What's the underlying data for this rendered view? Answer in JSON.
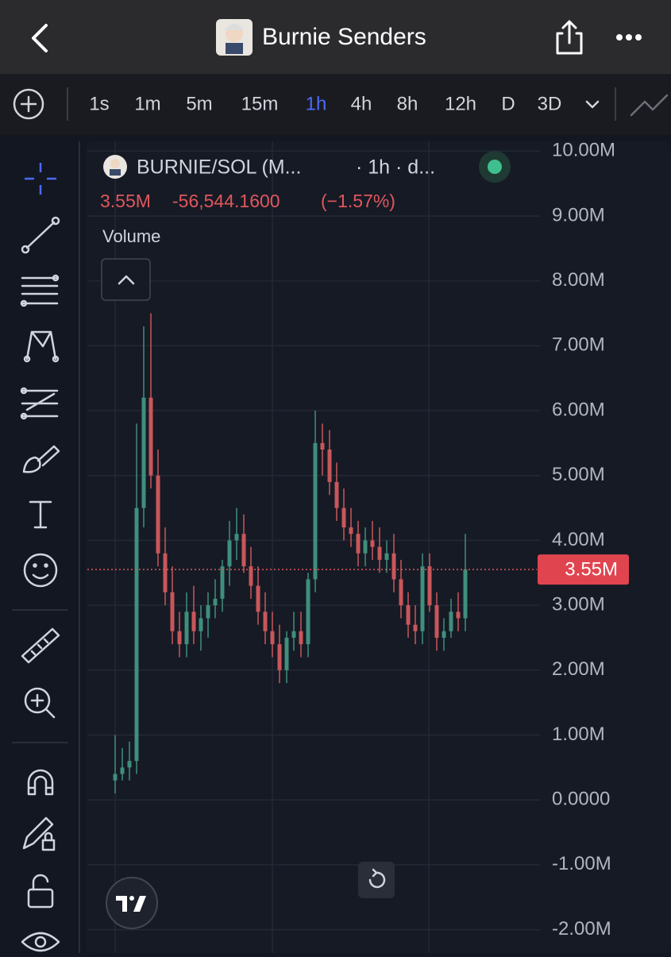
{
  "header": {
    "title": "Burnie Senders"
  },
  "timeframes": [
    "1s",
    "1m",
    "5m",
    "15m",
    "1h",
    "4h",
    "8h",
    "12h",
    "D",
    "3D"
  ],
  "active_timeframe": 4,
  "chart_data": {
    "type": "candlestick",
    "title": "BURNIE/SOL (M...",
    "interval": "· 1h · d...",
    "last_price": {
      "value": 3.55,
      "label": "3.55M"
    },
    "change": "-56,544.1600",
    "change_pct": "(−1.57%)",
    "volume_label": "Volume",
    "up_color": "#3f8f7c",
    "down_color": "#c8575a",
    "ylim": [
      -2.36,
      10.15
    ],
    "yticks": [
      {
        "value": 10,
        "label": "10.00M"
      },
      {
        "value": 9,
        "label": "9.00M"
      },
      {
        "value": 8,
        "label": "8.00M"
      },
      {
        "value": 7,
        "label": "7.00M"
      },
      {
        "value": 6,
        "label": "6.00M"
      },
      {
        "value": 5,
        "label": "5.00M"
      },
      {
        "value": 4,
        "label": "4.00M"
      },
      {
        "value": 3,
        "label": "3.00M"
      },
      {
        "value": 2,
        "label": "2.00M"
      },
      {
        "value": 1,
        "label": "1.00M"
      },
      {
        "value": 0,
        "label": "0.0000"
      },
      {
        "value": -1,
        "label": "-1.00M"
      },
      {
        "value": -2,
        "label": "-2.00M"
      }
    ],
    "grid": true,
    "open": [
      0.3,
      0.4,
      0.5,
      0.6,
      4.5,
      6.2,
      5.0,
      3.8,
      3.2,
      2.6,
      2.4,
      2.9,
      2.6,
      2.8,
      3.0,
      3.1,
      3.6,
      4.0,
      4.1,
      3.6,
      3.3,
      2.9,
      2.6,
      2.4,
      2.0,
      2.5,
      2.6,
      2.4,
      3.4,
      5.5,
      5.4,
      4.9,
      4.5,
      4.2,
      4.1,
      3.8,
      4.0,
      3.9,
      3.7,
      3.8,
      3.4,
      3.0,
      2.7,
      2.6,
      3.6,
      3.0,
      2.5,
      2.6,
      2.9,
      2.8
    ],
    "high": [
      1.0,
      0.8,
      0.9,
      5.8,
      7.3,
      7.5,
      5.4,
      4.2,
      3.6,
      2.9,
      3.2,
      3.3,
      3.0,
      3.2,
      3.4,
      3.7,
      4.3,
      4.5,
      4.4,
      3.9,
      3.6,
      3.2,
      2.9,
      2.7,
      2.6,
      2.9,
      2.9,
      3.5,
      6.0,
      5.8,
      5.7,
      5.2,
      4.8,
      4.5,
      4.3,
      4.2,
      4.3,
      4.2,
      4.0,
      4.1,
      3.7,
      3.2,
      3.0,
      3.8,
      3.8,
      3.2,
      2.8,
      3.1,
      3.2,
      4.1
    ],
    "low": [
      0.1,
      0.3,
      0.3,
      0.4,
      4.2,
      4.8,
      3.6,
      3.0,
      2.4,
      2.2,
      2.2,
      2.4,
      2.3,
      2.5,
      2.8,
      2.9,
      3.3,
      3.7,
      3.5,
      3.1,
      2.7,
      2.4,
      2.2,
      1.8,
      1.8,
      2.3,
      2.2,
      2.2,
      3.2,
      5.0,
      4.7,
      4.3,
      4.0,
      3.9,
      3.6,
      3.6,
      3.7,
      3.5,
      3.5,
      3.2,
      2.8,
      2.5,
      2.4,
      2.4,
      2.9,
      2.3,
      2.3,
      2.5,
      2.6,
      2.6
    ],
    "close": [
      0.4,
      0.5,
      0.6,
      4.5,
      6.2,
      5.0,
      3.8,
      3.2,
      2.6,
      2.4,
      2.9,
      2.6,
      2.8,
      3.0,
      3.1,
      3.6,
      4.0,
      4.1,
      3.6,
      3.3,
      2.9,
      2.6,
      2.4,
      2.0,
      2.5,
      2.6,
      2.4,
      3.4,
      5.5,
      5.4,
      4.9,
      4.5,
      4.2,
      4.1,
      3.8,
      4.0,
      3.9,
      3.7,
      3.8,
      3.4,
      3.0,
      2.7,
      2.6,
      3.6,
      3.0,
      2.5,
      2.6,
      2.9,
      2.8,
      3.55
    ]
  }
}
